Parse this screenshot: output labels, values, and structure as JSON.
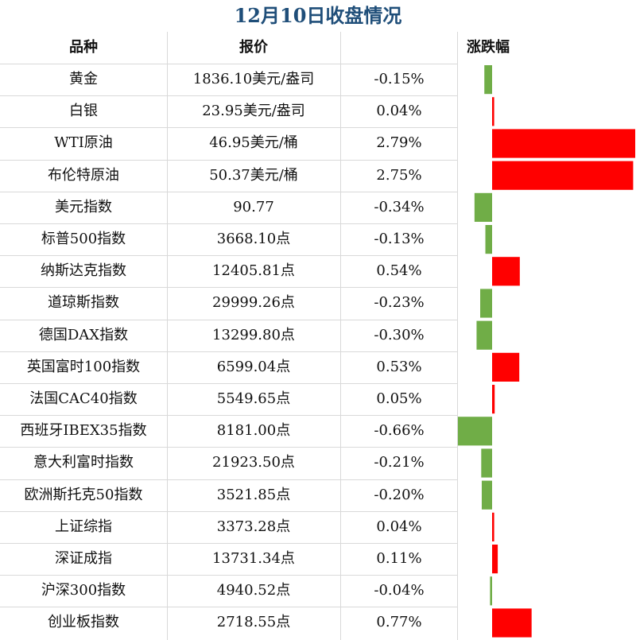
{
  "title": "12月10日收盘情况",
  "headers": {
    "name": "品种",
    "price": "报价",
    "change": "涨跌幅"
  },
  "colors": {
    "up": "#ff0000",
    "down": "#70ad47",
    "title": "#1f4e79",
    "grid": "#d9d9d9"
  },
  "rows": [
    {
      "name": "黄金",
      "price": "1836.10美元/盎司",
      "change": "-0.15%"
    },
    {
      "name": "白银",
      "price": "23.95美元/盎司",
      "change": "0.04%"
    },
    {
      "name": "WTI原油",
      "price": "46.95美元/桶",
      "change": "2.79%"
    },
    {
      "name": "布伦特原油",
      "price": "50.37美元/桶",
      "change": "2.75%"
    },
    {
      "name": "美元指数",
      "price": "90.77",
      "change": "-0.34%"
    },
    {
      "name": "标普500指数",
      "price": "3668.10点",
      "change": "-0.13%"
    },
    {
      "name": "纳斯达克指数",
      "price": "12405.81点",
      "change": "0.54%"
    },
    {
      "name": "道琼斯指数",
      "price": "29999.26点",
      "change": "-0.23%"
    },
    {
      "name": "德国DAX指数",
      "price": "13299.80点",
      "change": "-0.30%"
    },
    {
      "name": "英国富时100指数",
      "price": "6599.04点",
      "change": "0.53%"
    },
    {
      "name": "法国CAC40指数",
      "price": "5549.65点",
      "change": "0.05%"
    },
    {
      "name": "西班牙IBEX35指数",
      "price": "8181.00点",
      "change": "-0.66%"
    },
    {
      "name": "意大利富时指数",
      "price": "21923.50点",
      "change": "-0.21%"
    },
    {
      "name": "欧洲斯托克50指数",
      "price": "3521.85点",
      "change": "-0.20%"
    },
    {
      "name": "上证综指",
      "price": "3373.28点",
      "change": "0.04%"
    },
    {
      "name": "深证成指",
      "price": "13731.34点",
      "change": "0.11%"
    },
    {
      "name": "沪深300指数",
      "price": "4940.52点",
      "change": "-0.04%"
    },
    {
      "name": "创业板指数",
      "price": "2718.55点",
      "change": "0.77%"
    }
  ],
  "chart_data": {
    "type": "bar",
    "categories": [
      "黄金",
      "白银",
      "WTI原油",
      "布伦特原油",
      "美元指数",
      "标普500指数",
      "纳斯达克指数",
      "道琼斯指数",
      "德国DAX指数",
      "英国富时100指数",
      "法国CAC40指数",
      "西班牙IBEX35指数",
      "意大利富时指数",
      "欧洲斯托克50指数",
      "上证综指",
      "深证成指",
      "沪深300指数",
      "创业板指数"
    ],
    "values": [
      -0.15,
      0.04,
      2.79,
      2.75,
      -0.34,
      -0.13,
      0.54,
      -0.23,
      -0.3,
      0.53,
      0.05,
      -0.66,
      -0.21,
      -0.2,
      0.04,
      0.11,
      -0.04,
      0.77
    ],
    "unit": "%",
    "xlim": [
      -0.66,
      2.79
    ]
  }
}
